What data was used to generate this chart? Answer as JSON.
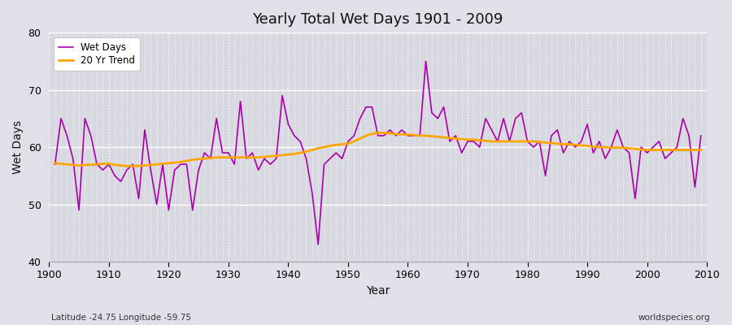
{
  "title": "Yearly Total Wet Days 1901 - 2009",
  "xlabel": "Year",
  "ylabel": "Wet Days",
  "footnote_left": "Latitude -24.75 Longitude -59.75",
  "footnote_right": "worldspecies.org",
  "ylim": [
    40,
    80
  ],
  "yticks": [
    40,
    50,
    60,
    70,
    80
  ],
  "wet_days_color": "#aa00aa",
  "trend_color": "#FFA500",
  "bg_color": "#E0E0E8",
  "plot_bg_color": "#D8D8E0",
  "years": [
    1901,
    1902,
    1903,
    1904,
    1905,
    1906,
    1907,
    1908,
    1909,
    1910,
    1911,
    1912,
    1913,
    1914,
    1915,
    1916,
    1917,
    1918,
    1919,
    1920,
    1921,
    1922,
    1923,
    1924,
    1925,
    1926,
    1927,
    1928,
    1929,
    1930,
    1931,
    1932,
    1933,
    1934,
    1935,
    1936,
    1937,
    1938,
    1939,
    1940,
    1941,
    1942,
    1943,
    1944,
    1945,
    1946,
    1947,
    1948,
    1949,
    1950,
    1951,
    1952,
    1953,
    1954,
    1955,
    1956,
    1957,
    1958,
    1959,
    1960,
    1961,
    1962,
    1963,
    1964,
    1965,
    1966,
    1967,
    1968,
    1969,
    1970,
    1971,
    1972,
    1973,
    1974,
    1975,
    1976,
    1977,
    1978,
    1979,
    1980,
    1981,
    1982,
    1983,
    1984,
    1985,
    1986,
    1987,
    1988,
    1989,
    1990,
    1991,
    1992,
    1993,
    1994,
    1995,
    1996,
    1997,
    1998,
    1999,
    2000,
    2001,
    2002,
    2003,
    2004,
    2005,
    2006,
    2007,
    2008,
    2009
  ],
  "wet_days": [
    57,
    65,
    62,
    58,
    49,
    65,
    62,
    57,
    56,
    57,
    55,
    54,
    56,
    57,
    51,
    63,
    56,
    50,
    57,
    49,
    56,
    57,
    57,
    49,
    56,
    59,
    58,
    65,
    59,
    59,
    57,
    68,
    58,
    59,
    56,
    58,
    57,
    58,
    69,
    64,
    62,
    61,
    58,
    52,
    43,
    57,
    58,
    59,
    58,
    61,
    62,
    65,
    67,
    67,
    62,
    62,
    63,
    62,
    63,
    62,
    62,
    62,
    75,
    66,
    65,
    67,
    61,
    62,
    59,
    61,
    61,
    60,
    65,
    63,
    61,
    65,
    61,
    65,
    66,
    61,
    60,
    61,
    55,
    62,
    63,
    59,
    61,
    60,
    61,
    64,
    59,
    61,
    58,
    60,
    63,
    60,
    59,
    51,
    60,
    59,
    60,
    61,
    58,
    59,
    60,
    65,
    62,
    53,
    62
  ],
  "trend_values": [
    57.2,
    57.1,
    57.0,
    56.9,
    56.8,
    56.9,
    56.9,
    57.0,
    57.1,
    57.1,
    56.9,
    56.8,
    56.7,
    56.7,
    56.7,
    56.8,
    56.9,
    57.0,
    57.1,
    57.2,
    57.3,
    57.4,
    57.6,
    57.8,
    57.9,
    58.0,
    58.1,
    58.2,
    58.2,
    58.2,
    58.2,
    58.2,
    58.2,
    58.2,
    58.2,
    58.3,
    58.4,
    58.5,
    58.6,
    58.7,
    58.8,
    59.0,
    59.2,
    59.5,
    59.8,
    60.0,
    60.2,
    60.4,
    60.5,
    60.6,
    61.0,
    61.5,
    62.0,
    62.3,
    62.5,
    62.5,
    62.4,
    62.3,
    62.2,
    62.2,
    62.1,
    62.0,
    62.0,
    61.9,
    61.8,
    61.7,
    61.6,
    61.5,
    61.4,
    61.3,
    61.3,
    61.2,
    61.1,
    61.0,
    61.0,
    61.0,
    61.0,
    61.0,
    61.0,
    61.0,
    61.0,
    60.9,
    60.8,
    60.7,
    60.6,
    60.5,
    60.5,
    60.4,
    60.3,
    60.2,
    60.1,
    60.0,
    60.0,
    59.9,
    59.9,
    59.9,
    59.8,
    59.7,
    59.6,
    59.5,
    59.5,
    59.5,
    59.5,
    59.5,
    59.5,
    59.5,
    59.5,
    59.5,
    59.5
  ]
}
